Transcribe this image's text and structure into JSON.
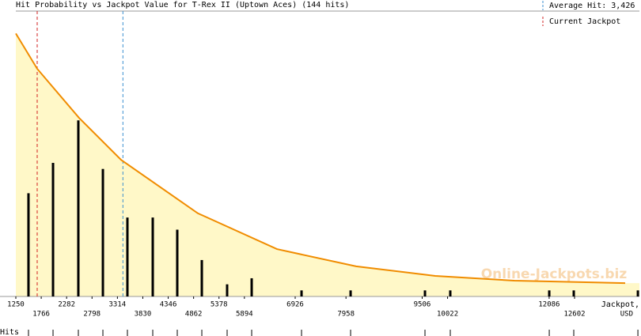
{
  "chart_data": {
    "type": "bar",
    "title": "Hit Probability vs Jackpot Value for T-Rex II (Uptown Aces) (144 hits)",
    "x_label": [
      "Jackpot,",
      "USD"
    ],
    "rug_label": "Hits",
    "watermark": "Online-Jackpots.biz",
    "x": [
      1507,
      2006,
      2520,
      3019,
      3517,
      4032,
      4530,
      5029,
      5543,
      6042,
      7055,
      8052,
      9563,
      10077,
      12088,
      12586,
      13889
    ],
    "values": [
      17,
      22,
      29,
      21,
      13,
      13,
      11,
      6,
      2,
      3,
      1,
      1,
      1,
      1,
      1,
      1,
      1
    ],
    "color": "#000000",
    "curve": {
      "x": [
        1250,
        1684,
        2536,
        3389,
        4948,
        6556,
        8164,
        9772,
        11380,
        13631
      ],
      "values": [
        43.3,
        37.5,
        29.4,
        22.5,
        13.7,
        7.8,
        4.96,
        3.39,
        2.6,
        2.2
      ],
      "color": "#f08c00",
      "fill": "#fff8c8"
    },
    "average_hit": {
      "value": 3426,
      "label": "Average Hit: 3,426",
      "color": "#3a8fd0"
    },
    "current_jackpot": {
      "value": 1684,
      "label": "Current Jackpot",
      "color": "#d02020"
    },
    "xlim": [
      1250,
      13920
    ],
    "ylim": [
      0,
      47
    ],
    "xticks": [
      1250,
      1766,
      2282,
      2798,
      3314,
      3830,
      4346,
      4862,
      5378,
      5894,
      6926,
      7958,
      9506,
      10022,
      12086,
      12602
    ]
  }
}
